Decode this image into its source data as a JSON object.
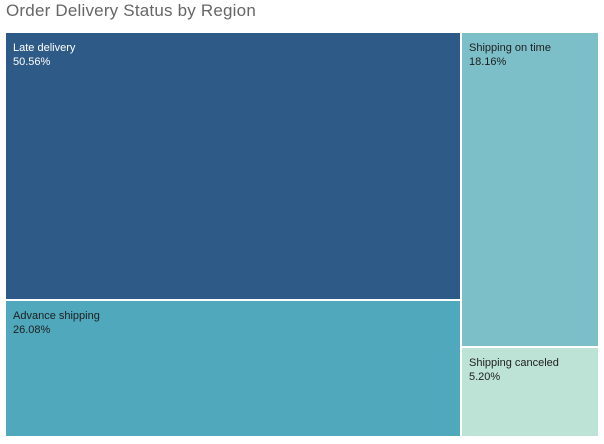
{
  "title": "Order Delivery Status by Region",
  "chart_data": {
    "type": "treemap",
    "title": "Order Delivery Status by Region",
    "items": [
      {
        "label": "Late delivery",
        "value": 50.56,
        "value_label": "50.56%",
        "color": "#2e5a87"
      },
      {
        "label": "Advance shipping",
        "value": 26.08,
        "value_label": "26.08%",
        "color": "#4fa8bc"
      },
      {
        "label": "Shipping on time",
        "value": 18.16,
        "value_label": "18.16%",
        "color": "#7cbfc9"
      },
      {
        "label": "Shipping canceled",
        "value": 5.2,
        "value_label": "5.20%",
        "color": "#bde3d6"
      }
    ]
  }
}
